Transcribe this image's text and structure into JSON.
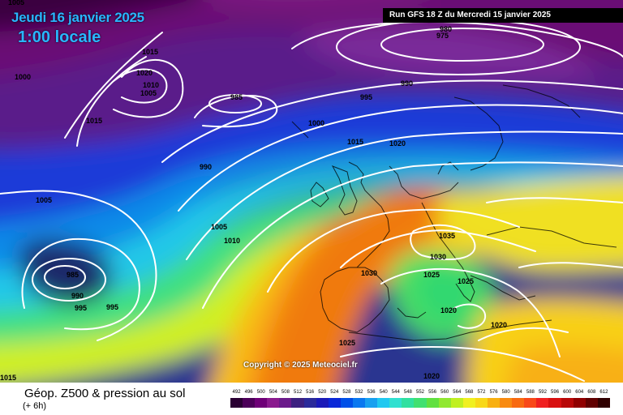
{
  "header": {
    "date": "Jeudi 16 janvier 2025",
    "time": "1:00 locale",
    "run": "Run GFS 18 Z du Mercredi 15 janvier 2025"
  },
  "copyright": "Copyright © 2025 Meteociel.fr",
  "footer": {
    "title": "Géop. Z500 & pression au sol",
    "subtitle": "(+ 6h)"
  },
  "legend": {
    "values": [
      "492",
      "496",
      "500",
      "504",
      "508",
      "512",
      "516",
      "520",
      "524",
      "528",
      "532",
      "536",
      "540",
      "544",
      "548",
      "552",
      "556",
      "560",
      "564",
      "568",
      "572",
      "576",
      "580",
      "584",
      "588",
      "592",
      "596",
      "600",
      "604",
      "608",
      "612"
    ],
    "colors": [
      "#2a0033",
      "#4c0059",
      "#6e0077",
      "#8a1a8e",
      "#6a1a8a",
      "#3c2080",
      "#2a2a9a",
      "#1a1ab8",
      "#0a28d8",
      "#0050e8",
      "#0a78f0",
      "#18a0f0",
      "#20c8f0",
      "#30e0d0",
      "#30e0a0",
      "#40e070",
      "#60e040",
      "#90e830",
      "#c0f020",
      "#f0f020",
      "#f8d818",
      "#f8b010",
      "#f88a10",
      "#f86a10",
      "#f84818",
      "#f02020",
      "#d81010",
      "#b80808",
      "#900000",
      "#600000",
      "#300000"
    ]
  },
  "isobar_labels": [
    "1005",
    "1015",
    "1000",
    "1020",
    "1010",
    "1005",
    "1015",
    "985",
    "980",
    "975",
    "990",
    "995",
    "1000",
    "1015",
    "1020",
    "990",
    "1005",
    "1005",
    "1010",
    "1035",
    "1030",
    "1030",
    "1025",
    "1025",
    "985",
    "990",
    "995",
    "995",
    "1020",
    "1025",
    "1020",
    "1015",
    "1020"
  ]
}
